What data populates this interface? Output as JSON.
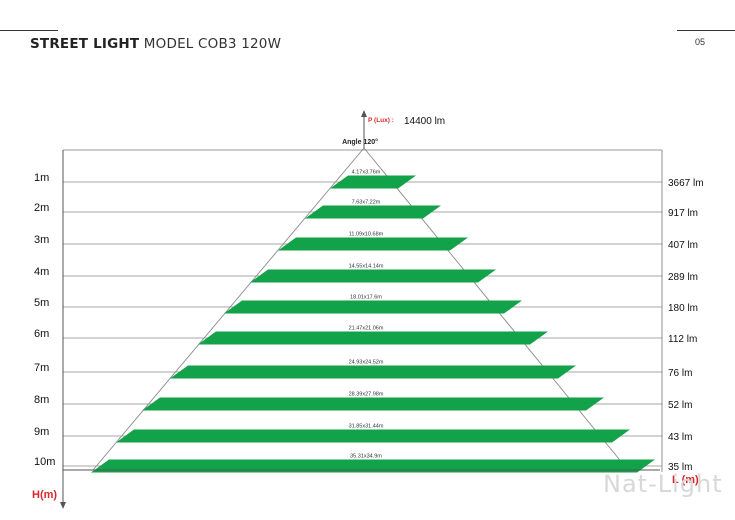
{
  "header": {
    "title_strong": "STREET LIGHT",
    "title_light": "MODEL COB3 120W",
    "page_number": "05"
  },
  "axes": {
    "y_top_label": "P (Lux) :",
    "y_top_value": "14400 lm",
    "y_bottom_label": "H(m)",
    "x_right_label": "L (m)",
    "angle_label": "Angle 120°"
  },
  "colors": {
    "plate": "#12a24a",
    "axis_label": "#d9262b",
    "lines": "#8a8a8a"
  },
  "levels": [
    {
      "height": "1m",
      "dims": "4.17x3.76m",
      "lux": "3667 lm"
    },
    {
      "height": "2m",
      "dims": "7.63x7.22m",
      "lux": "917 lm"
    },
    {
      "height": "3m",
      "dims": "11.09x10.68m",
      "lux": "407 lm"
    },
    {
      "height": "4m",
      "dims": "14.55x14.14m",
      "lux": "289 lm"
    },
    {
      "height": "5m",
      "dims": "18.01x17.6m",
      "lux": "180 lm"
    },
    {
      "height": "6m",
      "dims": "21.47x21.06m",
      "lux": "112 lm"
    },
    {
      "height": "7m",
      "dims": "24.93x24.52m",
      "lux": "76 lm"
    },
    {
      "height": "8m",
      "dims": "28.39x27.98m",
      "lux": "52 lm"
    },
    {
      "height": "9m",
      "dims": "31.85x31.44m",
      "lux": "43 lm"
    },
    {
      "height": "10m",
      "dims": "35.31x34.9m",
      "lux": "35 lm"
    }
  ],
  "watermark": "Nat-Light"
}
